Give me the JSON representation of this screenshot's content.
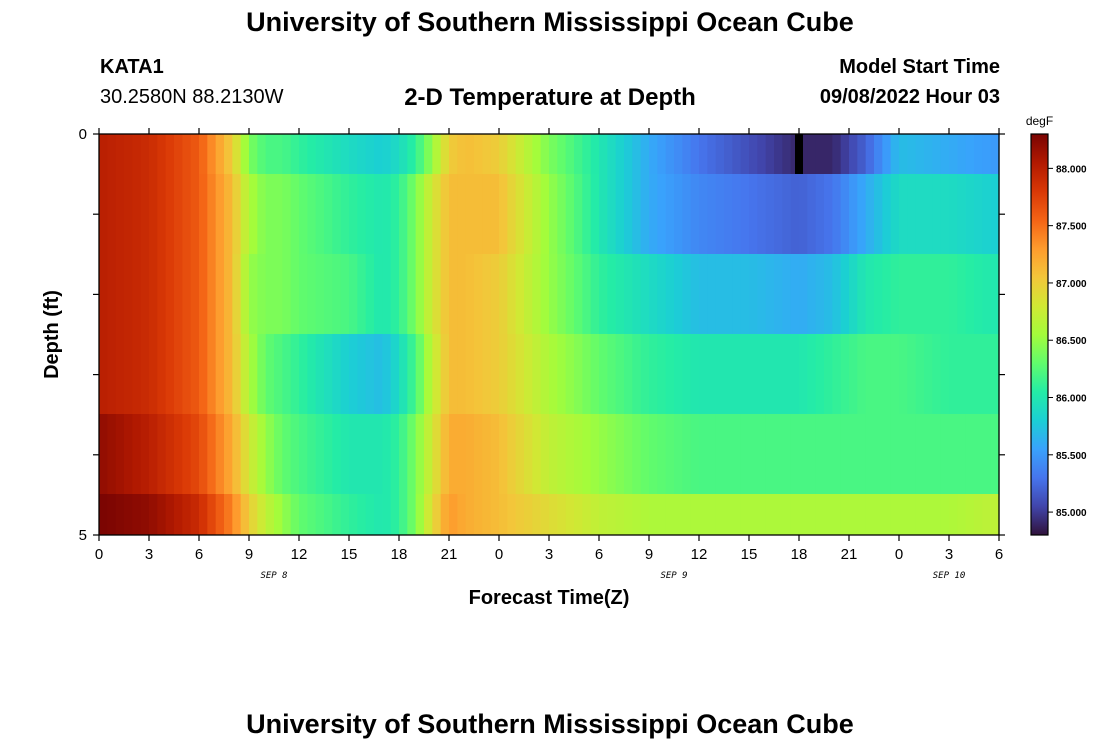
{
  "header": {
    "title": "University of Southern Mississippi Ocean Cube",
    "station_id": "KATA1",
    "station_coords": "30.2580N  88.2130W",
    "chart_title": "2-D Temperature at Depth",
    "model_label": "Model Start Time",
    "model_time": "09/08/2022 Hour 03"
  },
  "footer": {
    "title": "University of Southern Mississippi Ocean Cube"
  },
  "chart_data": {
    "type": "heatmap",
    "title": "2-D Temperature at Depth",
    "xlabel": "Forecast Time(Z)",
    "ylabel": "Depth (ft)",
    "x_tick_labels": [
      "0",
      "3",
      "6",
      "9",
      "12",
      "15",
      "18",
      "21",
      "0",
      "3",
      "6",
      "9",
      "12",
      "15",
      "18",
      "21",
      "0",
      "3",
      "6"
    ],
    "date_labels": [
      {
        "text": "SEP 8",
        "at_tick": 3.5
      },
      {
        "text": "SEP 9",
        "at_tick": 11.5
      },
      {
        "text": "SEP 10",
        "at_tick": 17
      }
    ],
    "y_tick_labels": [
      {
        "text": "0",
        "depth": 0
      },
      {
        "text": "5",
        "depth": 5
      }
    ],
    "y_range": [
      0,
      5
    ],
    "x_range_hours": [
      0,
      54
    ],
    "depth_levels": [
      "0-1",
      "1-2",
      "2-3",
      "3-4",
      "4-4.5",
      "4.5-5"
    ],
    "value_range": [
      84.8,
      88.3
    ],
    "colorbar": {
      "unit": "degF",
      "ticks": [
        "88.000",
        "87.500",
        "87.000",
        "86.500",
        "86.000",
        "85.500",
        "85.000"
      ],
      "tick_values": [
        88.0,
        87.5,
        87.0,
        86.5,
        86.0,
        85.5,
        85.0
      ],
      "colors": [
        "#30123b",
        "#4145ab",
        "#4675ed",
        "#39a2fc",
        "#1bcfd4",
        "#24eca6",
        "#61fc6c",
        "#a4fc3b",
        "#d1e834",
        "#f3c63a",
        "#fe9b2d",
        "#f36315",
        "#d93806",
        "#b11901",
        "#7a0402"
      ]
    },
    "key_times": [
      0,
      3,
      6,
      8,
      9,
      10,
      11,
      12,
      15,
      17,
      18,
      19,
      20,
      21,
      22,
      24,
      27,
      30,
      33,
      36,
      39,
      42,
      44,
      46,
      48,
      51,
      54
    ],
    "temperature_series": [
      {
        "level": "0-1",
        "values": [
          88.0,
          87.9,
          87.6,
          87.0,
          86.4,
          86.2,
          86.2,
          86.1,
          85.9,
          85.8,
          85.9,
          86.1,
          86.5,
          87.0,
          87.1,
          87.0,
          86.4,
          86.0,
          85.6,
          85.3,
          85.1,
          84.9,
          84.9,
          85.2,
          85.7,
          85.6,
          85.5
        ]
      },
      {
        "level": "1-2",
        "values": [
          88.0,
          87.9,
          87.6,
          87.1,
          86.6,
          86.4,
          86.4,
          86.3,
          86.1,
          86.0,
          86.1,
          86.4,
          86.8,
          87.1,
          87.1,
          87.1,
          86.5,
          86.0,
          85.6,
          85.4,
          85.3,
          85.2,
          85.3,
          85.6,
          85.9,
          85.9,
          85.8
        ]
      },
      {
        "level": "2-3",
        "values": [
          88.0,
          87.9,
          87.6,
          87.1,
          86.5,
          86.4,
          86.4,
          86.3,
          86.2,
          86.0,
          86.1,
          86.4,
          86.8,
          87.1,
          87.1,
          87.0,
          86.5,
          86.1,
          85.9,
          85.7,
          85.7,
          85.6,
          85.7,
          86.0,
          86.1,
          86.1,
          86.0
        ]
      },
      {
        "level": "3-4",
        "values": [
          88.0,
          87.9,
          87.6,
          87.1,
          86.6,
          86.3,
          86.2,
          86.1,
          85.8,
          85.7,
          85.9,
          86.2,
          86.7,
          87.1,
          87.1,
          87.0,
          86.6,
          86.3,
          86.1,
          86.0,
          86.0,
          86.0,
          86.1,
          86.2,
          86.2,
          86.1,
          86.1
        ]
      },
      {
        "level": "4-4.5",
        "values": [
          88.2,
          88.0,
          87.7,
          87.2,
          86.8,
          86.5,
          86.3,
          86.2,
          86.0,
          86.0,
          86.1,
          86.4,
          86.8,
          87.2,
          87.2,
          87.1,
          86.7,
          86.5,
          86.3,
          86.2,
          86.2,
          86.2,
          86.2,
          86.2,
          86.2,
          86.2,
          86.2
        ]
      },
      {
        "level": "4.5-5",
        "values": [
          88.3,
          88.2,
          87.9,
          87.4,
          87.0,
          86.7,
          86.5,
          86.3,
          86.1,
          86.0,
          86.1,
          86.4,
          86.9,
          87.3,
          87.2,
          87.1,
          86.9,
          86.7,
          86.6,
          86.6,
          86.6,
          86.6,
          86.6,
          86.6,
          86.6,
          86.6,
          86.7
        ]
      }
    ]
  }
}
